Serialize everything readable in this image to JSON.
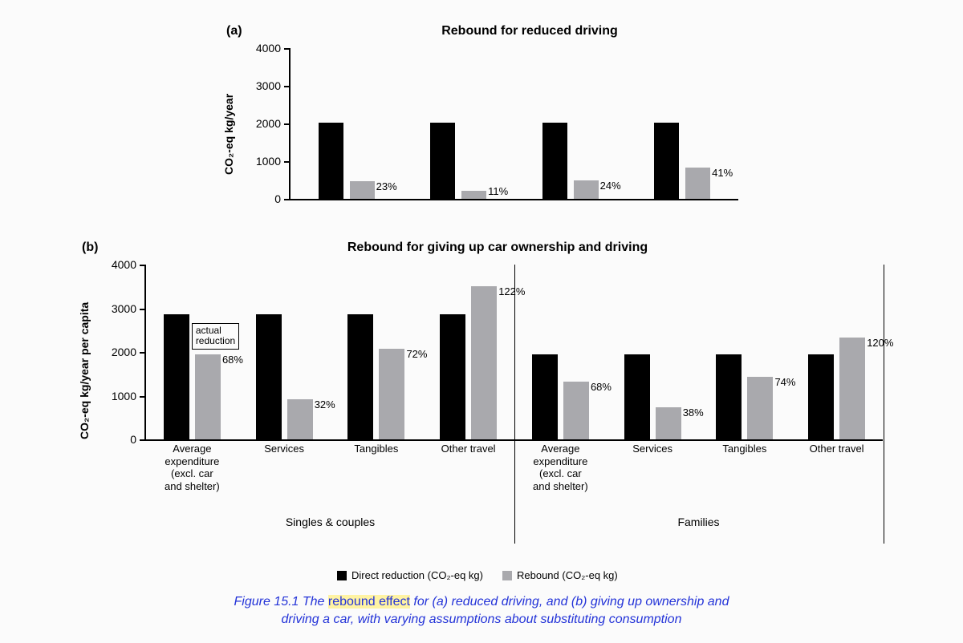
{
  "colors": {
    "direct": "#000000",
    "rebound": "#a9a9ad",
    "axis": "#000000",
    "caption": "#2333d8",
    "highlight_bg": "#fff3a3",
    "background": "#fbfbfb"
  },
  "typography": {
    "title_fontsize": 16,
    "axis_label_fontsize": 14,
    "tick_fontsize": 14,
    "bar_label_fontsize": 13,
    "caption_fontsize": 16,
    "font_family": "Arial"
  },
  "chart_a": {
    "panel_label": "(a)",
    "title": "Rebound for reduced driving",
    "y_axis_label": "CO₂-eq kg/year",
    "ylim": [
      0,
      4000
    ],
    "ytick_step": 1000,
    "bar_width_ratio": 0.22,
    "bar_gap_ratio": 0.06,
    "groups": [
      {
        "direct": 2030,
        "rebound": 467,
        "pct": "23%"
      },
      {
        "direct": 2030,
        "rebound": 223,
        "pct": "11%"
      },
      {
        "direct": 2030,
        "rebound": 487,
        "pct": "24%"
      },
      {
        "direct": 2030,
        "rebound": 832,
        "pct": "41%"
      }
    ]
  },
  "chart_b": {
    "panel_label": "(b)",
    "title": "Rebound for giving up car ownership and driving",
    "y_axis_label": "CO₂-eq kg/year per capita",
    "ylim": [
      0,
      4000
    ],
    "ytick_step": 1000,
    "bar_width_ratio": 0.28,
    "bar_gap_ratio": 0.06,
    "annotation": "actual\nreduction",
    "categories": [
      [
        "Average",
        "expenditure",
        "(excl. car",
        "and shelter)"
      ],
      [
        "Services"
      ],
      [
        "Tangibles"
      ],
      [
        "Other travel"
      ],
      [
        "Average",
        "expenditure",
        "(excl. car",
        "and shelter)"
      ],
      [
        "Services"
      ],
      [
        "Tangibles"
      ],
      [
        "Other travel"
      ]
    ],
    "group_labels": [
      "Singles & couples",
      "Families"
    ],
    "groups": [
      {
        "direct": 2870,
        "rebound": 1952,
        "pct": "68%"
      },
      {
        "direct": 2870,
        "rebound": 918,
        "pct": "32%"
      },
      {
        "direct": 2870,
        "rebound": 2066,
        "pct": "72%"
      },
      {
        "direct": 2870,
        "rebound": 3500,
        "pct": "122%"
      },
      {
        "direct": 1940,
        "rebound": 1320,
        "pct": "68%"
      },
      {
        "direct": 1940,
        "rebound": 737,
        "pct": "38%"
      },
      {
        "direct": 1940,
        "rebound": 1436,
        "pct": "74%"
      },
      {
        "direct": 1940,
        "rebound": 2328,
        "pct": "120%"
      }
    ]
  },
  "legend": {
    "items": [
      {
        "label": "Direct reduction (CO₂-eq kg)",
        "color_key": "direct"
      },
      {
        "label": "Rebound (CO₂-eq kg)",
        "color_key": "rebound"
      }
    ]
  },
  "caption": {
    "lead": "Figure 15.1",
    "text_before_highlight": "  The ",
    "highlight": "rebound effect",
    "text_after_highlight": " for (a) reduced driving, and (b) giving up ownership and",
    "line2": "driving a car, with varying assumptions about substituting consumption"
  }
}
